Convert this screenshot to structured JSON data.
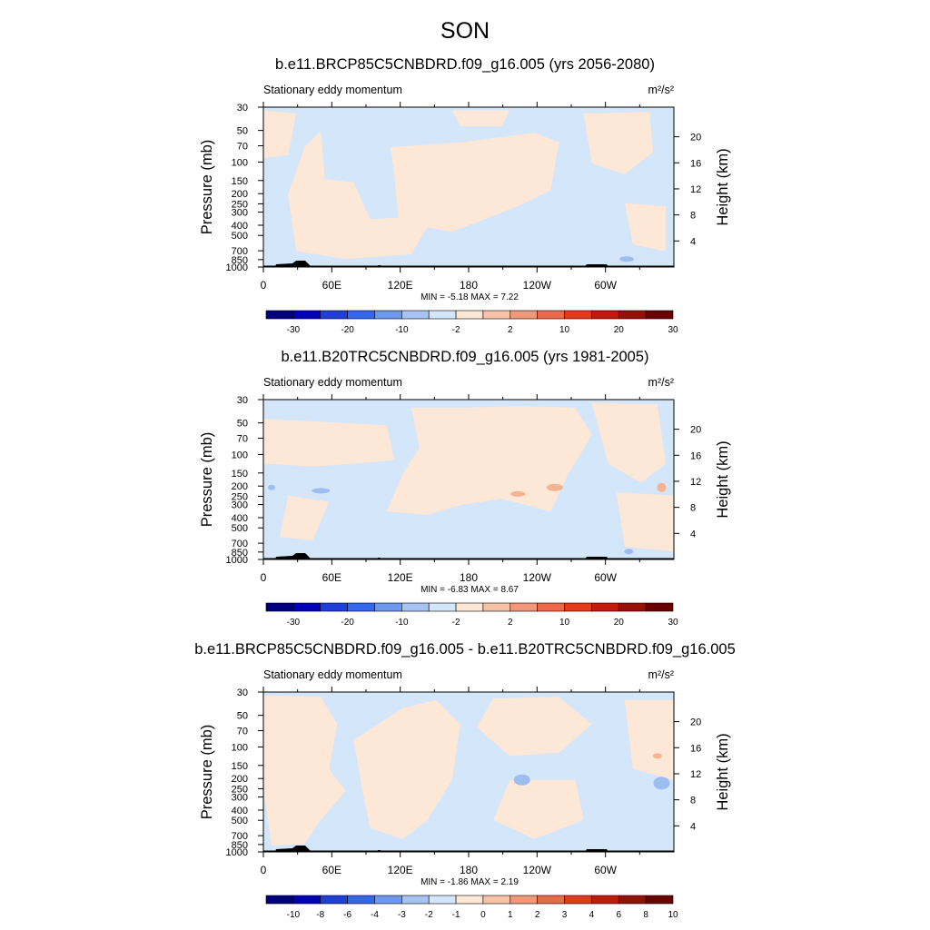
{
  "figure": {
    "title": "SON"
  },
  "colors": {
    "levels_abs": [
      "#00007f",
      "#0000b8",
      "#1f3fd8",
      "#3468ec",
      "#6e98f0",
      "#a6c3f2",
      "#d4e6fa",
      "#fde7d6",
      "#f6c3a8",
      "#f19878",
      "#ec6a4a",
      "#e43a1c",
      "#c21a0c",
      "#961008",
      "#6a0000"
    ],
    "levels_diff": [
      "#00007f",
      "#0000b8",
      "#1f3fd8",
      "#3468ec",
      "#6e98f0",
      "#a6c3f2",
      "#d4e6fa",
      "#fde7d6",
      "#f6c3a8",
      "#f19878",
      "#ec6a4a",
      "#e43a1c",
      "#c21a0c",
      "#961008",
      "#6a0000"
    ],
    "topography": "#000000"
  },
  "chart_data": [
    {
      "type": "heatmap",
      "title": "b.e11.BRCP85C5CNBDRD.f09_g16.005 (yrs 2056-2080)",
      "variable_label": "Stationary eddy momentum",
      "units": "m²/s²",
      "xlabel": "",
      "ylabel": "Pressure (mb)",
      "y2label": "Height (km)",
      "xlim": [
        0,
        360
      ],
      "ylim": [
        1000,
        30
      ],
      "yscale": "log",
      "x_ticks": [
        "0",
        "60E",
        "120E",
        "180",
        "120W",
        "60W"
      ],
      "y_ticks": [
        "30",
        "50",
        "70",
        "100",
        "150",
        "200",
        "250",
        "300",
        "400",
        "500",
        "700",
        "850",
        "1000"
      ],
      "y2_ticks": [
        "20",
        "16",
        "12",
        "8",
        "4"
      ],
      "stats": "MIN =  -5.18  MAX =   7.22",
      "min": -5.18,
      "max": 7.22,
      "colorbar_labels": [
        "-30",
        "-20",
        "-10",
        "-2",
        "2",
        "10",
        "20",
        "30"
      ]
    },
    {
      "type": "heatmap",
      "title": "b.e11.B20TRC5CNBDRD.f09_g16.005 (yrs 1981-2005)",
      "variable_label": "Stationary eddy momentum",
      "units": "m²/s²",
      "xlabel": "",
      "ylabel": "Pressure (mb)",
      "y2label": "Height (km)",
      "xlim": [
        0,
        360
      ],
      "ylim": [
        1000,
        30
      ],
      "yscale": "log",
      "x_ticks": [
        "0",
        "60E",
        "120E",
        "180",
        "120W",
        "60W"
      ],
      "y_ticks": [
        "30",
        "50",
        "70",
        "100",
        "150",
        "200",
        "250",
        "300",
        "400",
        "500",
        "700",
        "850",
        "1000"
      ],
      "y2_ticks": [
        "20",
        "16",
        "12",
        "8",
        "4"
      ],
      "stats": "MIN =  -6.83  MAX =   8.67",
      "min": -6.83,
      "max": 8.67,
      "colorbar_labels": [
        "-30",
        "-20",
        "-10",
        "-2",
        "2",
        "10",
        "20",
        "30"
      ]
    },
    {
      "type": "heatmap",
      "title": "b.e11.BRCP85C5CNBDRD.f09_g16.005 - b.e11.B20TRC5CNBDRD.f09_g16.005",
      "variable_label": "Stationary eddy momentum",
      "units": "m²/s²",
      "xlabel": "",
      "ylabel": "Pressure (mb)",
      "y2label": "Height (km)",
      "xlim": [
        0,
        360
      ],
      "ylim": [
        1000,
        30
      ],
      "yscale": "log",
      "x_ticks": [
        "0",
        "60E",
        "120E",
        "180",
        "120W",
        "60W"
      ],
      "y_ticks": [
        "30",
        "50",
        "70",
        "100",
        "150",
        "200",
        "250",
        "300",
        "400",
        "500",
        "700",
        "850",
        "1000"
      ],
      "y2_ticks": [
        "20",
        "16",
        "12",
        "8",
        "4"
      ],
      "stats": "MIN =  -1.86  MAX =   2.19",
      "min": -1.86,
      "max": 2.19,
      "colorbar_labels": [
        "-10",
        "-8",
        "-6",
        "-4",
        "-3",
        "-2",
        "-1",
        "0",
        "1",
        "2",
        "3",
        "4",
        "6",
        "8",
        "10"
      ]
    }
  ]
}
